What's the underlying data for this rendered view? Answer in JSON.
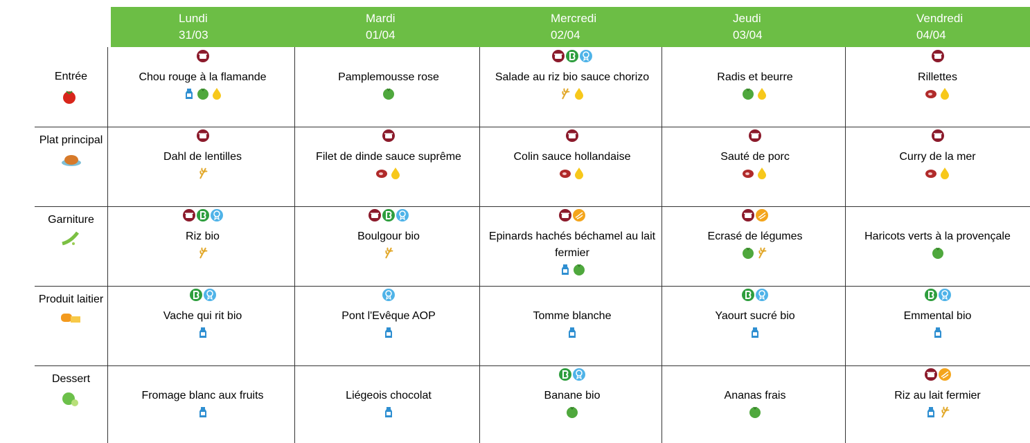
{
  "days": [
    {
      "name": "Lundi",
      "date": "31/03"
    },
    {
      "name": "Mardi",
      "date": "01/04"
    },
    {
      "name": "Mercredi",
      "date": "02/04"
    },
    {
      "name": "Jeudi",
      "date": "03/04"
    },
    {
      "name": "Vendredi",
      "date": "04/04"
    }
  ],
  "rows": [
    {
      "label": "Entrée",
      "dishes": [
        "Chou rouge à la flamande",
        "Pamplemousse rose",
        "Salade au riz bio sauce chorizo",
        "Radis et beurre",
        "Rillettes"
      ]
    },
    {
      "label": "Plat principal",
      "dishes": [
        "Dahl de lentilles",
        "Filet de dinde sauce suprême",
        "Colin sauce hollandaise",
        "Sauté de porc",
        "Curry de la mer"
      ]
    },
    {
      "label": "Garniture",
      "dishes": [
        "Riz bio",
        "Boulgour bio",
        "Epinards hachés béchamel au lait fermier",
        "Ecrasé de légumes",
        "Haricots verts à la provençale"
      ]
    },
    {
      "label": "Produit laitier",
      "dishes": [
        "Vache qui rit bio",
        "Pont l'Evêque AOP",
        "Tomme blanche",
        "Yaourt sucré bio",
        "Emmental bio"
      ]
    },
    {
      "label": "Dessert",
      "dishes": [
        "Fromage blanc aux fruits",
        "Liégeois chocolat",
        "Banane bio",
        "Ananas frais",
        "Riz au lait fermier"
      ]
    }
  ]
}
